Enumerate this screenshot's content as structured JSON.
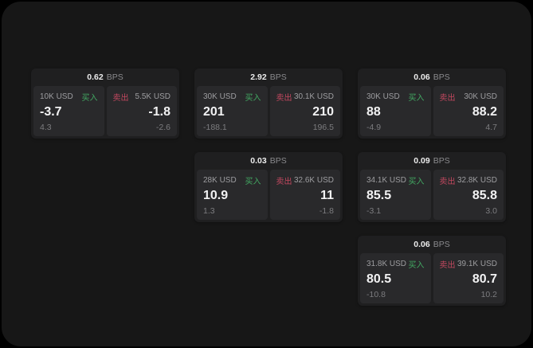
{
  "colors": {
    "background": "#000000",
    "window_bg": "#171717",
    "card_bg": "#1f1f20",
    "panel_bg": "#29292b",
    "buy_green": "#42a862",
    "sell_red": "#c2485f"
  },
  "cards": [
    {
      "bps_value": "0.62",
      "bps_unit": "BPS",
      "buy": {
        "amount": "10K USD",
        "side_label": "买入",
        "value": "-3.7",
        "sub_value": "4.3"
      },
      "sell": {
        "side_label": "卖出",
        "amount": "5.5K USD",
        "value": "-1.8",
        "sub_value": "-2.6"
      }
    },
    {
      "bps_value": "2.92",
      "bps_unit": "BPS",
      "buy": {
        "amount": "30K USD",
        "side_label": "买入",
        "value": "201",
        "sub_value": "-188.1"
      },
      "sell": {
        "side_label": "卖出",
        "amount": "30.1K USD",
        "value": "210",
        "sub_value": "196.5"
      }
    },
    {
      "bps_value": "0.06",
      "bps_unit": "BPS",
      "buy": {
        "amount": "30K USD",
        "side_label": "买入",
        "value": "88",
        "sub_value": "-4.9"
      },
      "sell": {
        "side_label": "卖出",
        "amount": "30K USD",
        "value": "88.2",
        "sub_value": "4.7"
      }
    },
    {
      "bps_value": "0.03",
      "bps_unit": "BPS",
      "buy": {
        "amount": "28K USD",
        "side_label": "买入",
        "value": "10.9",
        "sub_value": "1.3"
      },
      "sell": {
        "side_label": "卖出",
        "amount": "32.6K USD",
        "value": "11",
        "sub_value": "-1.8"
      }
    },
    {
      "bps_value": "0.09",
      "bps_unit": "BPS",
      "buy": {
        "amount": "34.1K USD",
        "side_label": "买入",
        "value": "85.5",
        "sub_value": "-3.1"
      },
      "sell": {
        "side_label": "卖出",
        "amount": "32.8K USD",
        "value": "85.8",
        "sub_value": "3.0"
      }
    },
    {
      "bps_value": "0.06",
      "bps_unit": "BPS",
      "buy": {
        "amount": "31.8K USD",
        "side_label": "买入",
        "value": "80.5",
        "sub_value": "-10.8"
      },
      "sell": {
        "side_label": "卖出",
        "amount": "39.1K USD",
        "value": "80.7",
        "sub_value": "10.2"
      }
    }
  ]
}
